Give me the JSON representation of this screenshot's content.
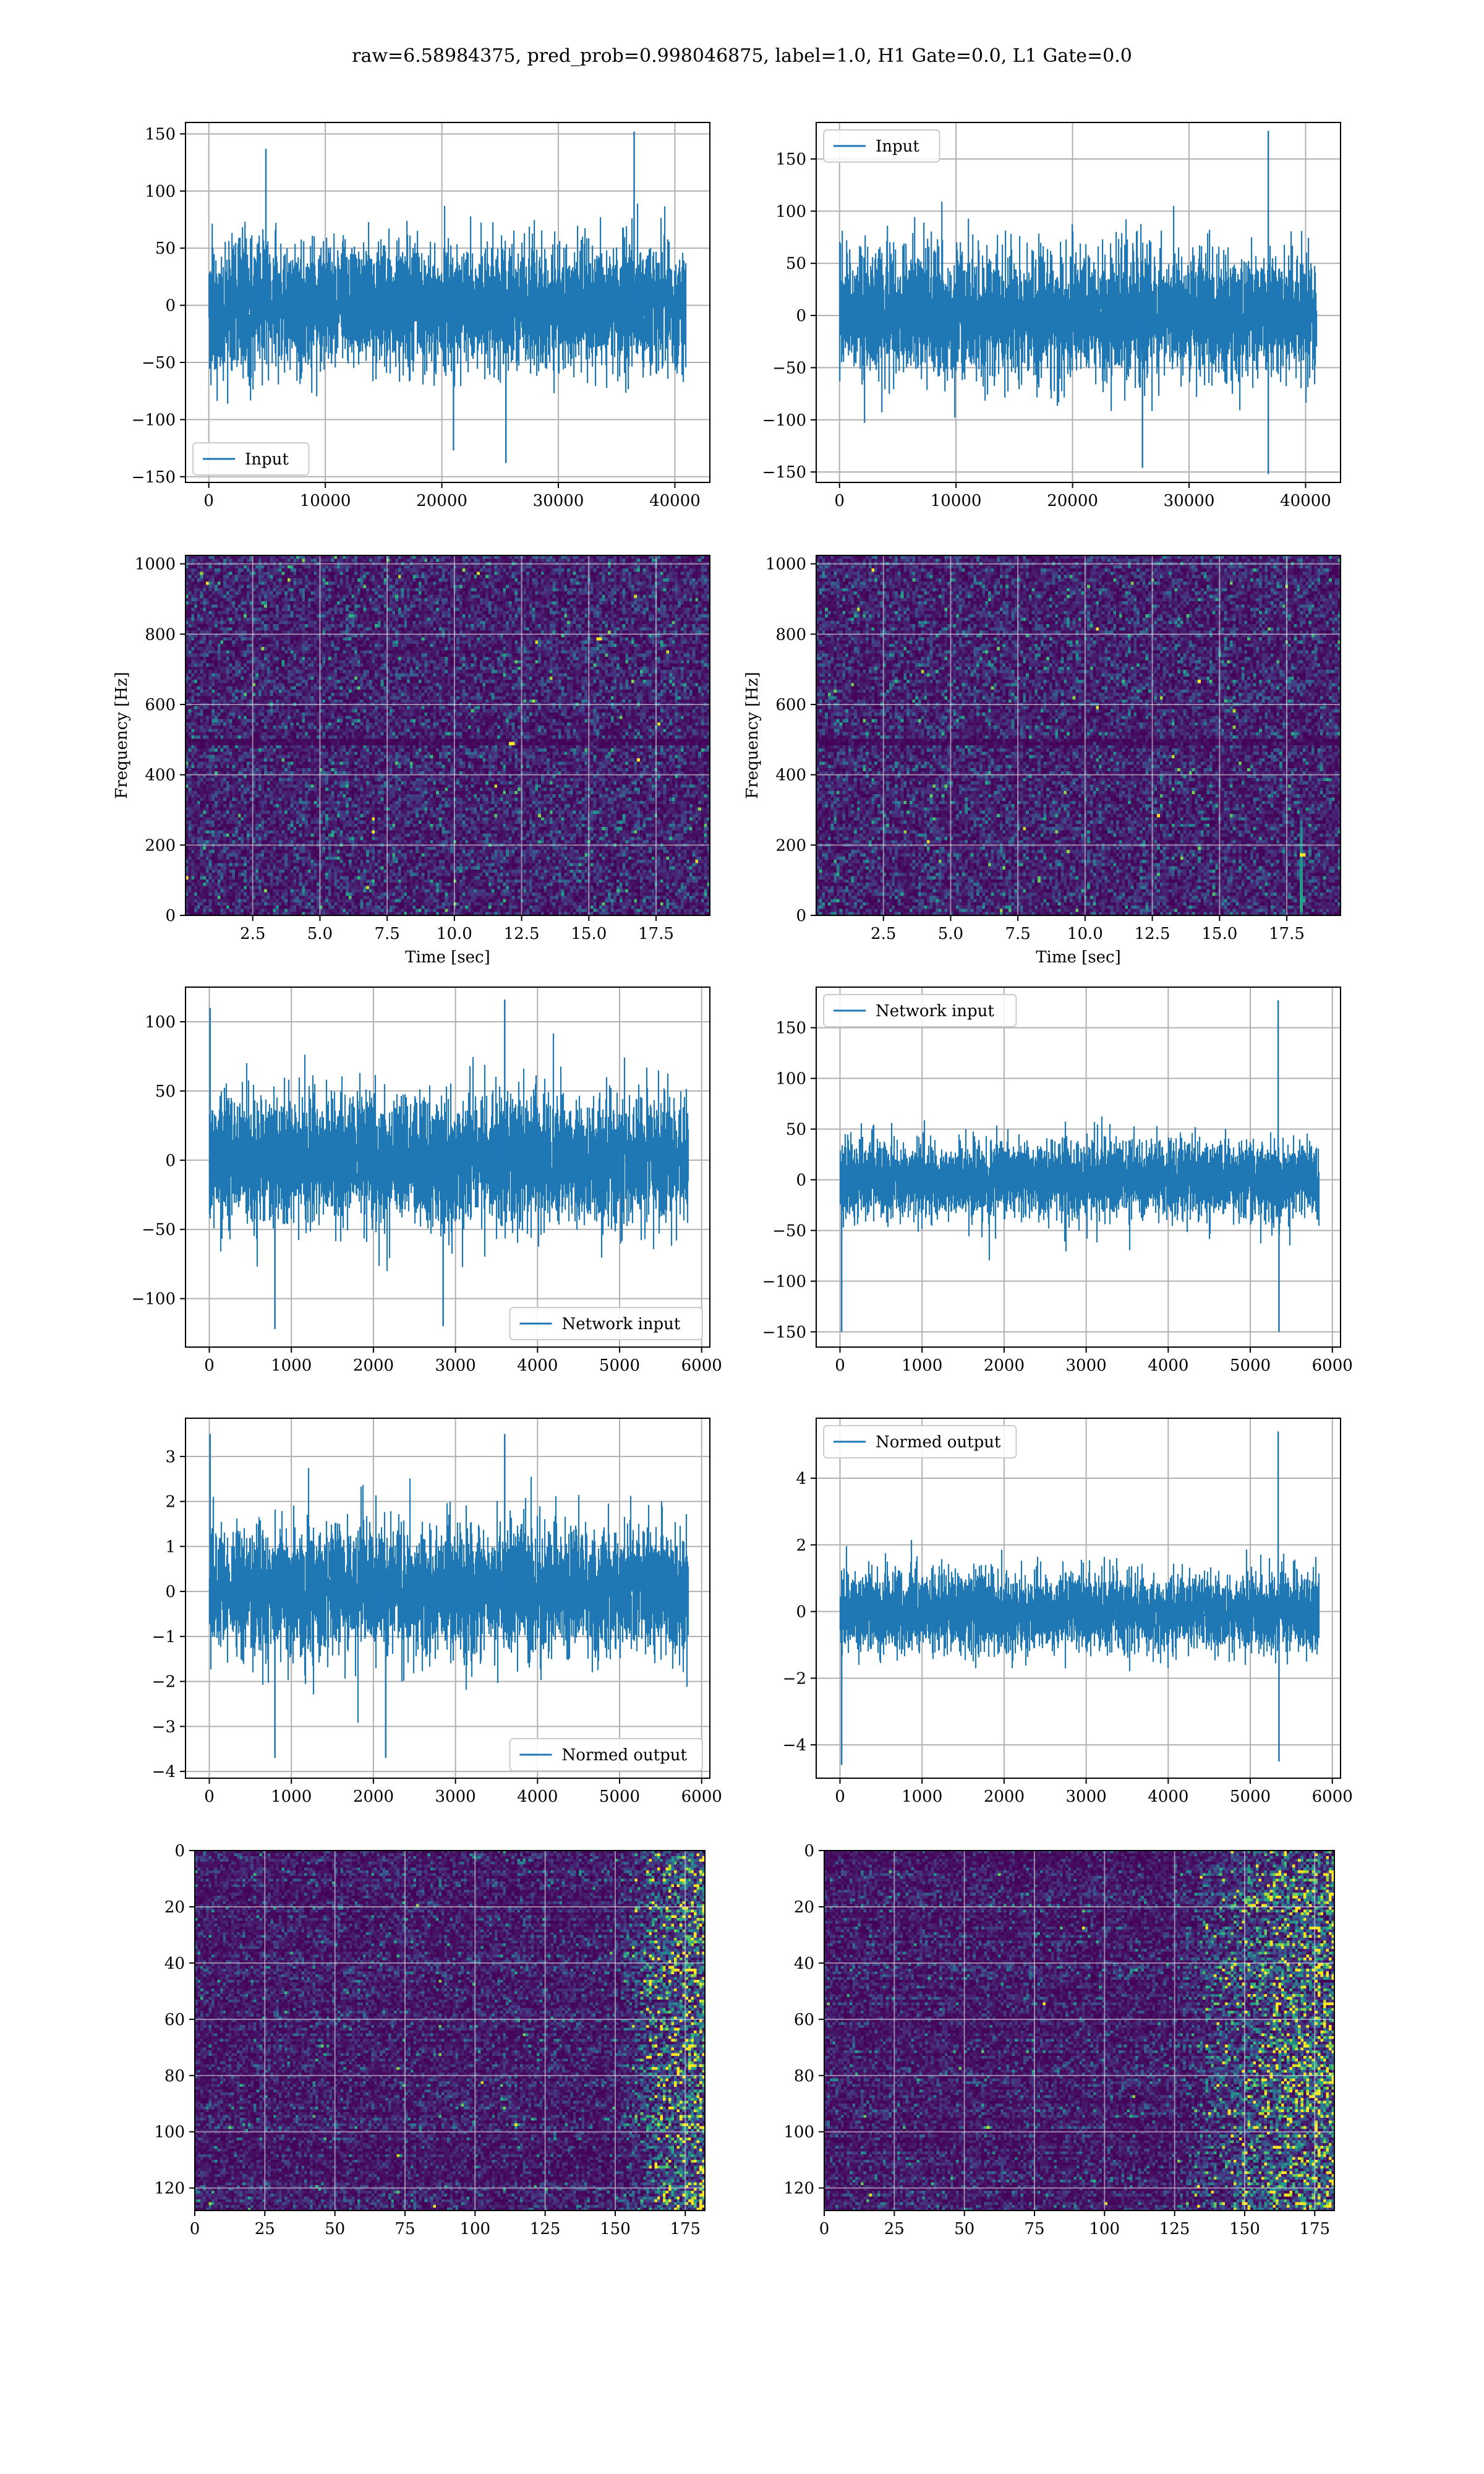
{
  "figure": {
    "suptitle": "raw=6.58984375, pred_prob=0.998046875, label=1.0, H1 Gate=0.0, L1 Gate=0.0"
  },
  "colors": {
    "line": "#1f77b4",
    "grid": "#b0b0b0",
    "viridis": [
      "#440154",
      "#482878",
      "#3e4989",
      "#31688e",
      "#26828e",
      "#1f9e89",
      "#35b779",
      "#6ece58",
      "#b5de2b",
      "#fde725"
    ]
  },
  "chart_data": [
    {
      "id": "h1-input",
      "type": "line",
      "title": "",
      "xlabel": "",
      "ylabel": "",
      "xlim": [
        -2000,
        43000
      ],
      "ylim": [
        -155,
        160
      ],
      "xticks": [
        0,
        10000,
        20000,
        30000,
        40000
      ],
      "yticks": [
        -150,
        -100,
        -50,
        0,
        50,
        100,
        150
      ],
      "grid": true,
      "legend": "lower left",
      "series": [
        {
          "name": "Input",
          "n": 40960,
          "envelope_min": -140,
          "envelope_max": 152,
          "typical_abs": 65,
          "spikes": [
            {
              "x": 4900,
              "y": 137
            },
            {
              "x": 25500,
              "y": -138
            },
            {
              "x": 36500,
              "y": 152
            },
            {
              "x": 21000,
              "y": -127
            }
          ]
        }
      ]
    },
    {
      "id": "l1-input",
      "type": "line",
      "title": "",
      "xlabel": "",
      "ylabel": "",
      "xlim": [
        -2000,
        43000
      ],
      "ylim": [
        -160,
        185
      ],
      "xticks": [
        0,
        10000,
        20000,
        30000,
        40000
      ],
      "yticks": [
        -150,
        -100,
        -50,
        0,
        50,
        100,
        150
      ],
      "grid": true,
      "legend": "upper left",
      "series": [
        {
          "name": "Input",
          "n": 40960,
          "envelope_min": -152,
          "envelope_max": 177,
          "typical_abs": 70,
          "spikes": [
            {
              "x": 36800,
              "y": 177
            },
            {
              "x": 36800,
              "y": -152
            },
            {
              "x": 26000,
              "y": -146
            }
          ]
        }
      ]
    },
    {
      "id": "h1-spectrogram",
      "type": "heatmap",
      "title": "",
      "xlabel": "Time [sec]",
      "ylabel": "Frequency [Hz]",
      "xlim": [
        0,
        19.5
      ],
      "ylim": [
        0,
        1024
      ],
      "xticks": [
        2.5,
        5.0,
        7.5,
        10.0,
        12.5,
        15.0,
        17.5
      ],
      "yticks": [
        0,
        200,
        400,
        600,
        800,
        1000
      ],
      "grid": true,
      "legend": "none",
      "features": [
        {
          "t": 15.3,
          "f": 790,
          "kind": "hot-pixel"
        },
        {
          "t": 12.0,
          "f": 490,
          "kind": "hot-pixel"
        }
      ]
    },
    {
      "id": "l1-spectrogram",
      "type": "heatmap",
      "title": "",
      "xlabel": "Time [sec]",
      "ylabel": "Frequency [Hz]",
      "xlim": [
        0,
        19.5
      ],
      "ylim": [
        0,
        1024
      ],
      "xticks": [
        2.5,
        5.0,
        7.5,
        10.0,
        12.5,
        15.0,
        17.5
      ],
      "yticks": [
        0,
        200,
        400,
        600,
        800,
        1000
      ],
      "grid": true,
      "legend": "none",
      "features": [
        {
          "t": 18.0,
          "f_low": 20,
          "f_high": 250,
          "kind": "chirp"
        },
        {
          "t": 18.0,
          "f": 180,
          "kind": "hot-pixel"
        }
      ]
    },
    {
      "id": "h1-network-input",
      "type": "line",
      "title": "",
      "xlabel": "",
      "ylabel": "",
      "xlim": [
        -290,
        6100
      ],
      "ylim": [
        -135,
        125
      ],
      "xticks": [
        0,
        1000,
        2000,
        3000,
        4000,
        5000,
        6000
      ],
      "yticks": [
        -100,
        -50,
        0,
        50,
        100
      ],
      "grid": true,
      "legend": "lower right",
      "series": [
        {
          "name": "Network input",
          "n": 5840,
          "envelope_min": -123,
          "envelope_max": 116,
          "typical_abs": 55,
          "spikes": [
            {
              "x": 10,
              "y": 110
            },
            {
              "x": 800,
              "y": -122
            },
            {
              "x": 2850,
              "y": -120
            },
            {
              "x": 3600,
              "y": 116
            }
          ]
        }
      ]
    },
    {
      "id": "l1-network-input",
      "type": "line",
      "title": "",
      "xlabel": "",
      "ylabel": "",
      "xlim": [
        -290,
        6100
      ],
      "ylim": [
        -165,
        190
      ],
      "xticks": [
        0,
        1000,
        2000,
        3000,
        4000,
        5000,
        6000
      ],
      "yticks": [
        -150,
        -100,
        -50,
        0,
        50,
        100,
        150
      ],
      "grid": true,
      "legend": "upper left",
      "series": [
        {
          "name": "Network input",
          "n": 5840,
          "envelope_min": -150,
          "envelope_max": 177,
          "typical_abs": 45,
          "spikes": [
            {
              "x": 5340,
              "y": 177
            },
            {
              "x": 5350,
              "y": -150
            },
            {
              "x": 20,
              "y": -150
            }
          ]
        }
      ]
    },
    {
      "id": "h1-normed-output",
      "type": "line",
      "title": "",
      "xlabel": "",
      "ylabel": "",
      "xlim": [
        -290,
        6100
      ],
      "ylim": [
        -4.15,
        3.85
      ],
      "xticks": [
        0,
        1000,
        2000,
        3000,
        4000,
        5000,
        6000
      ],
      "yticks": [
        -4,
        -3,
        -2,
        -1,
        0,
        1,
        2,
        3
      ],
      "grid": true,
      "legend": "lower right",
      "series": [
        {
          "name": "Normed output",
          "n": 5840,
          "envelope_min": -3.8,
          "envelope_max": 3.6,
          "typical_abs": 1.7,
          "spikes": [
            {
              "x": 10,
              "y": 3.5
            },
            {
              "x": 800,
              "y": -3.7
            },
            {
              "x": 2150,
              "y": -3.7
            },
            {
              "x": 3600,
              "y": 3.5
            }
          ]
        }
      ]
    },
    {
      "id": "l1-normed-output",
      "type": "line",
      "title": "",
      "xlabel": "",
      "ylabel": "",
      "xlim": [
        -290,
        6100
      ],
      "ylim": [
        -5.0,
        5.8
      ],
      "xticks": [
        0,
        1000,
        2000,
        3000,
        4000,
        5000,
        6000
      ],
      "yticks": [
        -4,
        -2,
        0,
        2,
        4
      ],
      "grid": true,
      "legend": "upper left",
      "series": [
        {
          "name": "Normed output",
          "n": 5840,
          "envelope_min": -4.6,
          "envelope_max": 5.4,
          "typical_abs": 1.4,
          "spikes": [
            {
              "x": 5340,
              "y": 5.4
            },
            {
              "x": 5350,
              "y": -4.5
            },
            {
              "x": 20,
              "y": -4.6
            }
          ]
        }
      ]
    },
    {
      "id": "h1-network-features",
      "type": "heatmap",
      "title": "",
      "xlabel": "",
      "ylabel": "",
      "xlim": [
        0,
        182
      ],
      "ylim": [
        128,
        0
      ],
      "xticks": [
        0,
        25,
        50,
        75,
        100,
        125,
        150,
        175
      ],
      "yticks": [
        0,
        20,
        40,
        60,
        80,
        100,
        120
      ],
      "grid": true,
      "legend": "none",
      "rows": 128,
      "cols": 182,
      "features": [
        {
          "col_start": 150,
          "col_end": 182,
          "kind": "bright-band"
        },
        {
          "col": 161,
          "row": 73,
          "kind": "hot-pixel"
        }
      ]
    },
    {
      "id": "l1-network-features",
      "type": "heatmap",
      "title": "",
      "xlabel": "",
      "ylabel": "",
      "xlim": [
        0,
        182
      ],
      "ylim": [
        128,
        0
      ],
      "xticks": [
        0,
        25,
        50,
        75,
        100,
        125,
        150,
        175
      ],
      "yticks": [
        0,
        20,
        40,
        60,
        80,
        100,
        120
      ],
      "grid": true,
      "legend": "none",
      "rows": 128,
      "cols": 182,
      "features": [
        {
          "col_start": 125,
          "col_end": 182,
          "kind": "bright-band"
        },
        {
          "col": 165,
          "row": 95,
          "kind": "hot-pixel"
        },
        {
          "col": 160,
          "row": 105,
          "kind": "hot-pixel"
        }
      ]
    }
  ]
}
